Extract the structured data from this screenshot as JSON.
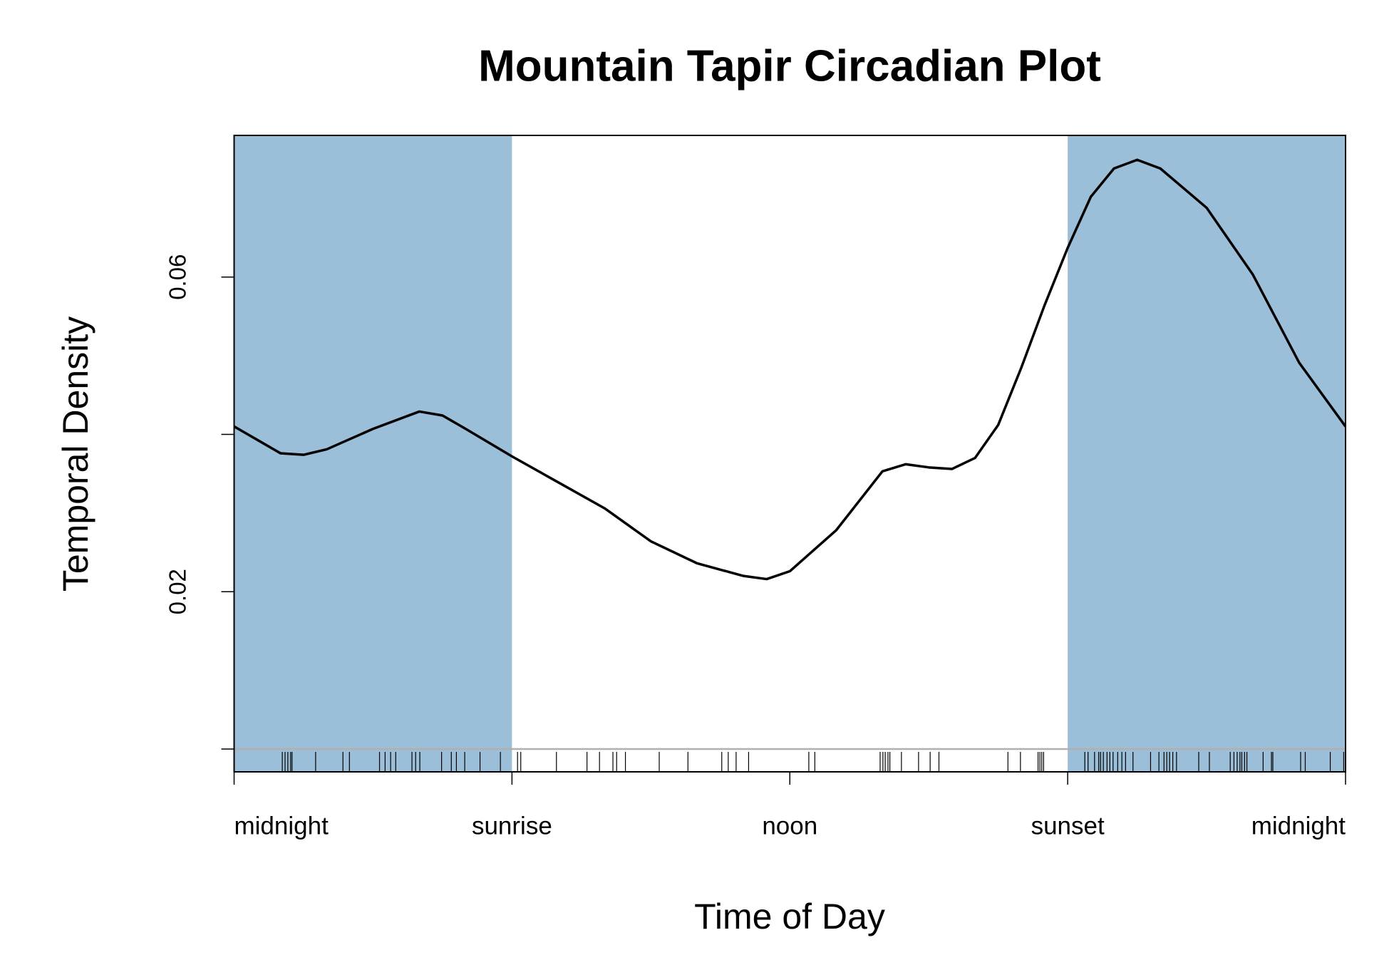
{
  "chart_data": {
    "type": "line",
    "title": "Mountain Tapir Circadian Plot",
    "x_label": "Time of Day",
    "y_label": "Temporal Density",
    "xlim": [
      0,
      24
    ],
    "xticks": [
      {
        "value": 0,
        "label": "midnight"
      },
      {
        "value": 6,
        "label": "sunrise"
      },
      {
        "value": 12,
        "label": "noon"
      },
      {
        "value": 18,
        "label": "sunset"
      },
      {
        "value": 24,
        "label": "midnight"
      }
    ],
    "ylim": [
      -0.0029,
      0.078
    ],
    "yticks": [
      {
        "value": 0,
        "label": null
      },
      {
        "value": 0.02,
        "label": "0.02"
      },
      {
        "value": 0.04,
        "label": null
      },
      {
        "value": 0.06,
        "label": "0.06"
      }
    ],
    "shaded_ranges": [
      [
        0,
        6
      ],
      [
        18,
        24
      ]
    ],
    "shade_color": "#9bbfd9",
    "x": [
      0,
      1,
      1.5,
      2,
      3,
      4,
      4.5,
      5,
      6,
      7,
      8,
      9,
      10,
      11,
      11.5,
      12,
      13,
      14,
      14.5,
      15,
      15.5,
      16,
      16.5,
      17,
      17.5,
      18,
      18.5,
      19,
      19.5,
      20,
      21,
      22,
      23,
      24
    ],
    "series": [
      {
        "name": "Temporal Density",
        "color": "#000000",
        "values": [
          0.041,
          0.0376,
          0.0374,
          0.0381,
          0.0407,
          0.0429,
          0.0424,
          0.0407,
          0.0372,
          0.0339,
          0.0306,
          0.0264,
          0.0236,
          0.022,
          0.0216,
          0.0226,
          0.0278,
          0.0353,
          0.0362,
          0.0358,
          0.0356,
          0.037,
          0.0412,
          0.0485,
          0.0564,
          0.0637,
          0.0702,
          0.0738,
          0.0749,
          0.0738,
          0.0688,
          0.0603,
          0.0491,
          0.041
        ]
      }
    ],
    "rug": [
      1.04,
      1.1,
      1.16,
      1.22,
      1.25,
      1.76,
      2.35,
      2.49,
      3.14,
      3.26,
      3.38,
      3.49,
      3.84,
      3.92,
      4.01,
      4.48,
      4.69,
      4.8,
      4.98,
      5.31,
      5.75,
      6.12,
      6.19,
      6.96,
      7.62,
      7.89,
      8.18,
      8.26,
      8.45,
      9.18,
      9.8,
      10.53,
      10.67,
      10.84,
      11.11,
      12.41,
      12.54,
      13.95,
      14.01,
      14.06,
      14.12,
      14.16,
      14.41,
      14.78,
      15.03,
      15.22,
      16.71,
      16.98,
      17.36,
      17.4,
      17.44,
      17.48,
      18.37,
      18.44,
      18.58,
      18.67,
      18.71,
      18.77,
      18.85,
      18.91,
      18.98,
      19.08,
      19.17,
      19.25,
      19.41,
      19.79,
      19.97,
      20.08,
      20.14,
      20.2,
      20.27,
      20.35,
      20.83,
      21.06,
      21.51,
      21.59,
      21.66,
      21.72,
      21.76,
      21.82,
      21.87,
      22.22,
      22.4,
      22.43,
      23.03,
      23.13,
      23.67,
      23.96
    ]
  }
}
